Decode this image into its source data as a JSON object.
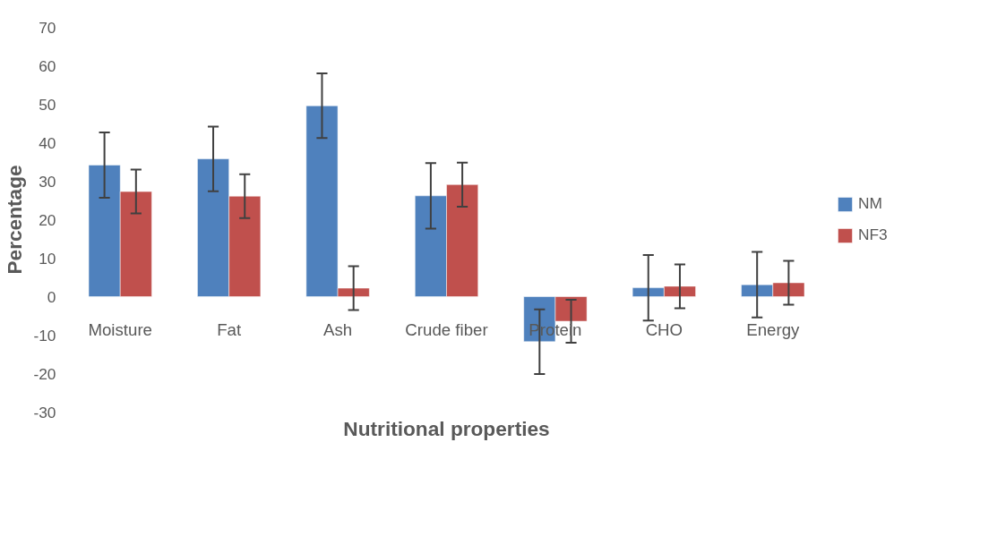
{
  "chart_data": {
    "type": "bar",
    "xlabel": "Nutritional properties",
    "ylabel": "Percentage",
    "categories": [
      "Moisture",
      "Fat",
      "Ash",
      "Crude fiber",
      "Protein",
      "CHO",
      "Energy"
    ],
    "series": [
      {
        "name": "NM",
        "color": "#4f81bd",
        "values": [
          34.2,
          35.8,
          49.6,
          26.2,
          -11.7,
          2.3,
          3.1
        ],
        "errors": [
          8.5,
          8.4,
          8.4,
          8.5,
          8.4,
          8.5,
          8.5
        ]
      },
      {
        "name": "NF3",
        "color": "#c0504d",
        "values": [
          27.3,
          26.1,
          2.2,
          29.1,
          -6.4,
          2.7,
          3.6
        ],
        "errors": [
          5.7,
          5.7,
          5.7,
          5.7,
          5.6,
          5.7,
          5.7
        ]
      }
    ],
    "ylim": [
      -30,
      70
    ],
    "yticks": [
      -30,
      -20,
      -10,
      0,
      10,
      20,
      30,
      40,
      50,
      60,
      70
    ],
    "grid": false,
    "legend": "right"
  }
}
